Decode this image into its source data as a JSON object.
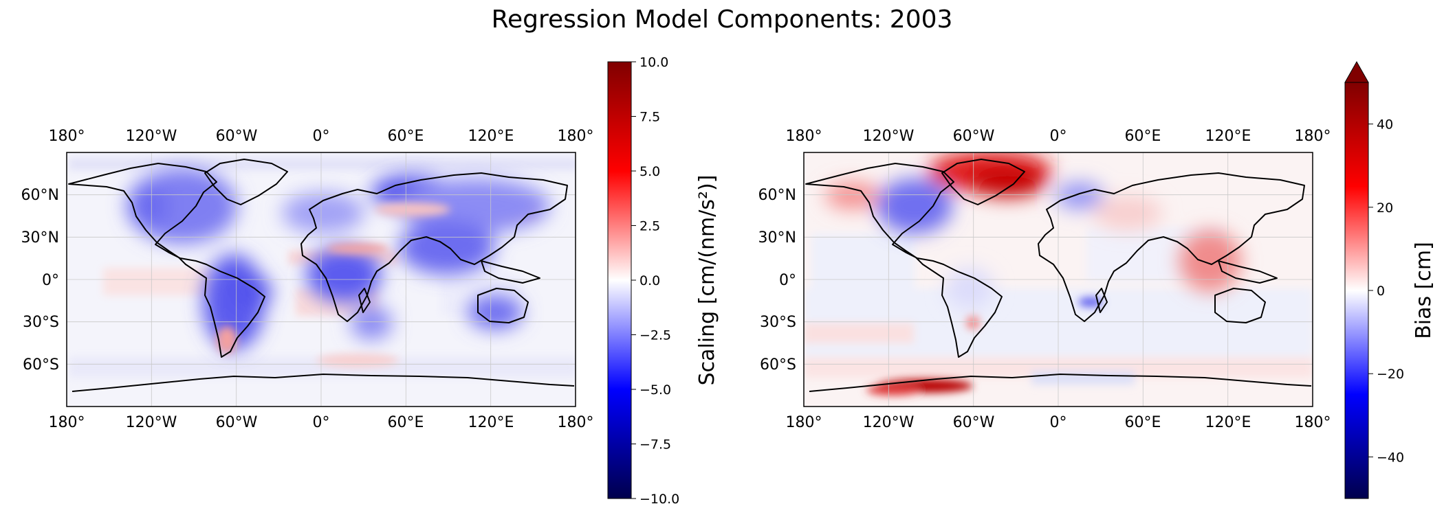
{
  "title": "Regression Model Components: 2003",
  "chart_data": [
    {
      "type": "heatmap",
      "projection": "plate carree world map with coastlines",
      "x_ticklabels": [
        "180°",
        "120°W",
        "60°W",
        "0°",
        "60°E",
        "120°E",
        "180°"
      ],
      "y_ticklabels": [
        "60°N",
        "30°N",
        "0°",
        "30°S",
        "60°S"
      ],
      "xlim": [
        -180,
        180
      ],
      "ylim": [
        -90,
        90
      ],
      "grid": true,
      "colormap": "seismic",
      "colorbar": {
        "label": "Scaling [cm/(nm/s²)]",
        "range": [
          -10,
          10
        ],
        "ticks": [
          "10.0",
          "7.5",
          "5.0",
          "2.5",
          "0.0",
          "−2.5",
          "−5.0",
          "−7.5",
          "−10.0"
        ],
        "extend": "neither"
      },
      "regions": [
        {
          "name": "North America interior",
          "sign": "negative"
        },
        {
          "name": "South America",
          "sign": "negative"
        },
        {
          "name": "Central Africa",
          "sign": "negative"
        },
        {
          "name": "Siberia",
          "sign": "negative"
        },
        {
          "name": "South Asia",
          "sign": "negative"
        },
        {
          "name": "Australia",
          "sign": "negative"
        },
        {
          "name": "Tropical Atlantic band",
          "sign": "positive"
        },
        {
          "name": "Southern Atlantic",
          "sign": "positive"
        }
      ]
    },
    {
      "type": "heatmap",
      "projection": "plate carree world map with coastlines",
      "x_ticklabels": [
        "180°",
        "120°W",
        "60°W",
        "0°",
        "60°E",
        "120°E",
        "180°"
      ],
      "y_ticklabels": [
        "60°N",
        "30°N",
        "0°",
        "30°S",
        "60°S"
      ],
      "xlim": [
        -180,
        180
      ],
      "ylim": [
        -90,
        90
      ],
      "grid": true,
      "colormap": "seismic",
      "colorbar": {
        "label": "Bias [cm]",
        "range": [
          -50,
          50
        ],
        "ticks": [
          "40",
          "20",
          "0",
          "−20",
          "−40"
        ],
        "extend": "max"
      },
      "regions": [
        {
          "name": "Greenland",
          "sign": "positive"
        },
        {
          "name": "Antarctic coast (Amundsen Sea)",
          "sign": "positive"
        },
        {
          "name": "Southeast Asia",
          "sign": "positive"
        },
        {
          "name": "Alaska",
          "sign": "positive"
        },
        {
          "name": "Canada / Hudson Bay",
          "sign": "negative"
        },
        {
          "name": "Scandinavia",
          "sign": "negative"
        },
        {
          "name": "Southern Africa",
          "sign": "negative"
        },
        {
          "name": "Southern Ocean",
          "sign": "positive"
        }
      ]
    }
  ],
  "colors": {
    "cmap_low": "#00004c",
    "cmap_mid_low": "#0000ff",
    "cmap_mid": "#ffffff",
    "cmap_mid_high": "#ff0000",
    "cmap_high": "#800000",
    "coastline": "#000000"
  }
}
